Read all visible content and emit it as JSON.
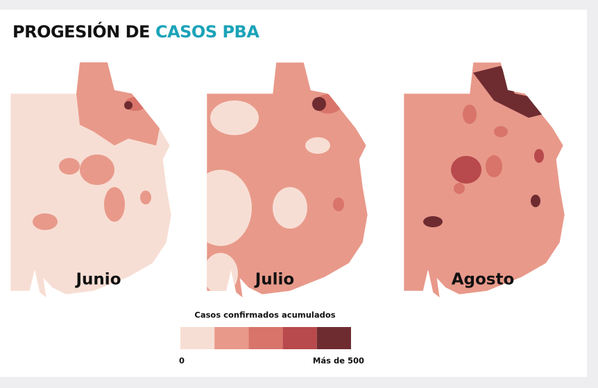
{
  "title": {
    "text": "PROGESIÓN DE",
    "highlight": "CASOS PBA"
  },
  "maps": [
    {
      "label": "Junio"
    },
    {
      "label": "Julio"
    },
    {
      "label": "Agosto"
    }
  ],
  "legend": {
    "title": "Casos confirmados acumulados",
    "min_label": "0",
    "max_label": "Más de 500",
    "colors": [
      "#f7ded4",
      "#e8998a",
      "#d9746a",
      "#b8494c",
      "#6e2c31"
    ]
  }
}
